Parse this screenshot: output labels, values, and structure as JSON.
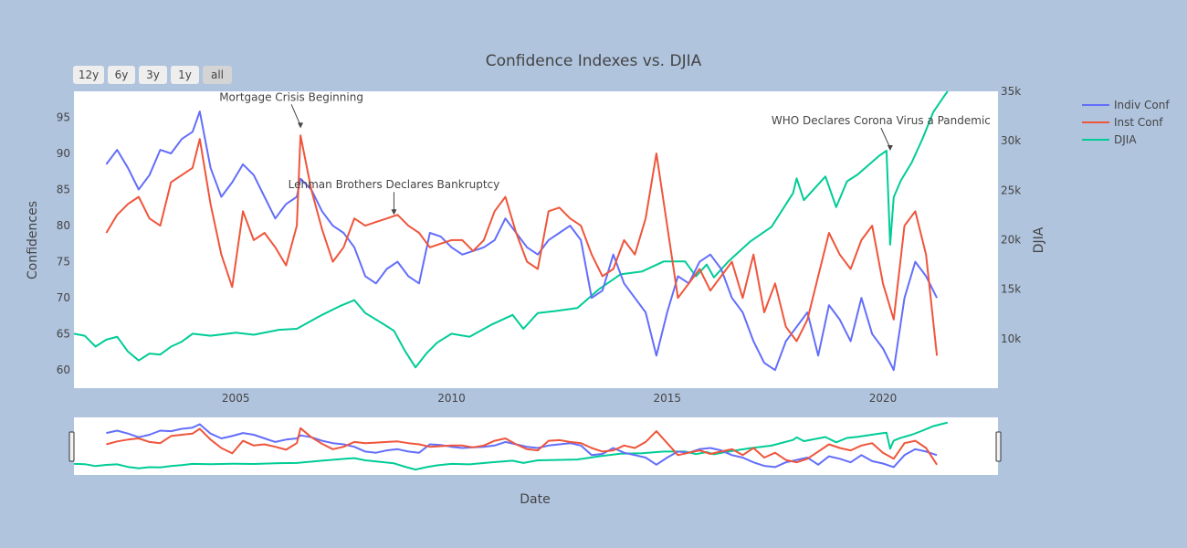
{
  "title": "Confidence Indexes vs. DJIA",
  "range_selector": [
    "12y",
    "6y",
    "3y",
    "1y",
    "all"
  ],
  "range_selector_active": "all",
  "colors": {
    "background": "#b0c4de",
    "plot_background": "#ffffff",
    "indiv": "#636efa",
    "inst": "#ef553b",
    "djia": "#00cc96"
  },
  "chart_data": {
    "type": "line",
    "title": "Confidence Indexes vs. DJIA",
    "xlabel": "Date",
    "ylabel": "Confidences",
    "y2label": "DJIA",
    "x_ticks": [
      "2005",
      "2010",
      "2015",
      "2020"
    ],
    "xlim": [
      "2001-04",
      "2022-09"
    ],
    "ylim": [
      57.5,
      98.6
    ],
    "y_ticks": [
      60,
      65,
      70,
      75,
      80,
      85,
      90,
      95
    ],
    "y2lim": [
      5000,
      35000
    ],
    "y2_ticks": [
      10000,
      15000,
      20000,
      25000,
      30000,
      35000
    ],
    "y2_tick_labels": [
      "10k",
      "15k",
      "20k",
      "25k",
      "30k",
      "35k"
    ],
    "legend": "top-right, outside plot",
    "grid": false,
    "rangeslider": true,
    "series": [
      {
        "name": "Indiv Conf",
        "axis": "y",
        "x": [
          "2002-01",
          "2002-04",
          "2002-07",
          "2002-10",
          "2003-01",
          "2003-04",
          "2003-07",
          "2003-10",
          "2004-01",
          "2004-03",
          "2004-06",
          "2004-09",
          "2004-12",
          "2005-03",
          "2005-06",
          "2005-09",
          "2005-12",
          "2006-03",
          "2006-06",
          "2006-07",
          "2006-10",
          "2007-01",
          "2007-04",
          "2007-07",
          "2007-10",
          "2008-01",
          "2008-04",
          "2008-07",
          "2008-10",
          "2009-01",
          "2009-04",
          "2009-07",
          "2009-10",
          "2010-01",
          "2010-04",
          "2010-07",
          "2010-10",
          "2011-01",
          "2011-04",
          "2011-07",
          "2011-10",
          "2012-01",
          "2012-04",
          "2012-07",
          "2012-10",
          "2013-01",
          "2013-04",
          "2013-07",
          "2013-10",
          "2014-01",
          "2014-04",
          "2014-07",
          "2014-10",
          "2015-01",
          "2015-04",
          "2015-07",
          "2015-10",
          "2016-01",
          "2016-04",
          "2016-07",
          "2016-10",
          "2017-01",
          "2017-04",
          "2017-07",
          "2017-10",
          "2018-01",
          "2018-04",
          "2018-07",
          "2018-10",
          "2019-01",
          "2019-04",
          "2019-07",
          "2019-10",
          "2020-01",
          "2020-04",
          "2020-07",
          "2020-10",
          "2021-01",
          "2021-04"
        ],
        "values": [
          88.5,
          90.5,
          88,
          85,
          87,
          90.5,
          90,
          92,
          93,
          95.8,
          88,
          84,
          86,
          88.5,
          87,
          84,
          81,
          83,
          84,
          86.5,
          85,
          82,
          80,
          79,
          77,
          73,
          72,
          74,
          75,
          73,
          72,
          79,
          78.5,
          77,
          76,
          76.5,
          77,
          78,
          81,
          79,
          77,
          76,
          78,
          79,
          80,
          78,
          70,
          71,
          76,
          72,
          70,
          68,
          62,
          68,
          73,
          72,
          75,
          76,
          74,
          70,
          68,
          64,
          61,
          60,
          64,
          66,
          68,
          62,
          69,
          67,
          64,
          70,
          65,
          63,
          60,
          70,
          75,
          73,
          70
        ]
      },
      {
        "name": "Inst Conf",
        "axis": "y",
        "x": [
          "2002-01",
          "2002-04",
          "2002-07",
          "2002-10",
          "2003-01",
          "2003-04",
          "2003-07",
          "2003-10",
          "2004-01",
          "2004-03",
          "2004-06",
          "2004-09",
          "2004-12",
          "2005-03",
          "2005-06",
          "2005-09",
          "2005-12",
          "2006-03",
          "2006-06",
          "2006-07",
          "2006-10",
          "2007-01",
          "2007-04",
          "2007-07",
          "2007-10",
          "2008-01",
          "2008-04",
          "2008-07",
          "2008-10",
          "2009-01",
          "2009-04",
          "2009-07",
          "2009-10",
          "2010-01",
          "2010-04",
          "2010-07",
          "2010-10",
          "2011-01",
          "2011-04",
          "2011-07",
          "2011-10",
          "2012-01",
          "2012-04",
          "2012-07",
          "2012-10",
          "2013-01",
          "2013-04",
          "2013-07",
          "2013-10",
          "2014-01",
          "2014-04",
          "2014-07",
          "2014-10",
          "2015-01",
          "2015-04",
          "2015-07",
          "2015-10",
          "2016-01",
          "2016-04",
          "2016-07",
          "2016-10",
          "2017-01",
          "2017-04",
          "2017-07",
          "2017-10",
          "2018-01",
          "2018-04",
          "2018-07",
          "2018-10",
          "2019-01",
          "2019-04",
          "2019-07",
          "2019-10",
          "2020-01",
          "2020-04",
          "2020-07",
          "2020-10",
          "2021-01",
          "2021-04"
        ],
        "values": [
          79,
          81.5,
          83,
          84,
          81,
          80,
          86,
          87,
          88,
          92,
          83,
          76,
          71.5,
          82,
          78,
          79,
          77,
          74.5,
          80,
          92.5,
          85,
          79.5,
          75,
          77,
          81,
          80,
          80.5,
          81,
          81.5,
          80,
          79,
          77,
          77.5,
          78,
          78,
          76.5,
          78,
          82,
          84,
          79,
          75,
          74,
          82,
          82.5,
          81,
          80,
          76,
          73,
          74,
          78,
          76,
          81,
          90,
          80,
          70,
          72,
          74,
          71,
          73,
          75,
          70,
          76,
          68,
          72,
          66,
          64,
          67,
          73,
          79,
          76,
          74,
          78,
          80,
          72,
          67,
          80,
          82,
          76,
          62
        ]
      },
      {
        "name": "DJIA",
        "axis": "y2",
        "x": [
          "2001-04",
          "2001-07",
          "2001-10",
          "2002-01",
          "2002-04",
          "2002-07",
          "2002-10",
          "2003-01",
          "2003-04",
          "2003-07",
          "2003-10",
          "2004-01",
          "2004-06",
          "2005-01",
          "2005-06",
          "2006-01",
          "2006-06",
          "2007-01",
          "2007-06",
          "2007-10",
          "2008-01",
          "2008-06",
          "2008-09",
          "2008-12",
          "2009-03",
          "2009-06",
          "2009-09",
          "2010-01",
          "2010-06",
          "2010-12",
          "2011-06",
          "2011-09",
          "2012-01",
          "2012-06",
          "2012-12",
          "2013-06",
          "2013-12",
          "2014-06",
          "2014-12",
          "2015-06",
          "2015-09",
          "2015-12",
          "2016-02",
          "2016-06",
          "2016-12",
          "2017-06",
          "2017-12",
          "2018-01",
          "2018-03",
          "2018-09",
          "2018-12",
          "2019-03",
          "2019-06",
          "2019-12",
          "2020-02",
          "2020-03",
          "2020-04",
          "2020-06",
          "2020-09",
          "2020-12",
          "2021-03",
          "2021-06",
          "2021-07"
        ],
        "values": [
          10500,
          10300,
          9200,
          9900,
          10200,
          8700,
          7800,
          8500,
          8400,
          9200,
          9700,
          10500,
          10300,
          10600,
          10400,
          10900,
          11000,
          12400,
          13300,
          13900,
          12600,
          11500,
          10800,
          8800,
          7100,
          8500,
          9600,
          10500,
          10200,
          11400,
          12400,
          11000,
          12600,
          12800,
          13100,
          15000,
          16500,
          16800,
          17800,
          17800,
          16300,
          17500,
          16200,
          17800,
          19800,
          21300,
          24700,
          26200,
          24000,
          26400,
          23300,
          25900,
          26600,
          28500,
          29000,
          19500,
          24300,
          26000,
          27800,
          30200,
          32900,
          34500,
          35000
        ]
      }
    ],
    "annotations": [
      {
        "text": "Mortgage Crisis Beginning",
        "x": "2006-07",
        "y": 93.5
      },
      {
        "text": "Lehman Brothers Declares Bankruptcy",
        "x": "2008-09",
        "y": 81.5
      },
      {
        "text": "WHO Declares Corona Virus a Pandemic",
        "x": "2020-03",
        "y2": 29000
      }
    ]
  }
}
